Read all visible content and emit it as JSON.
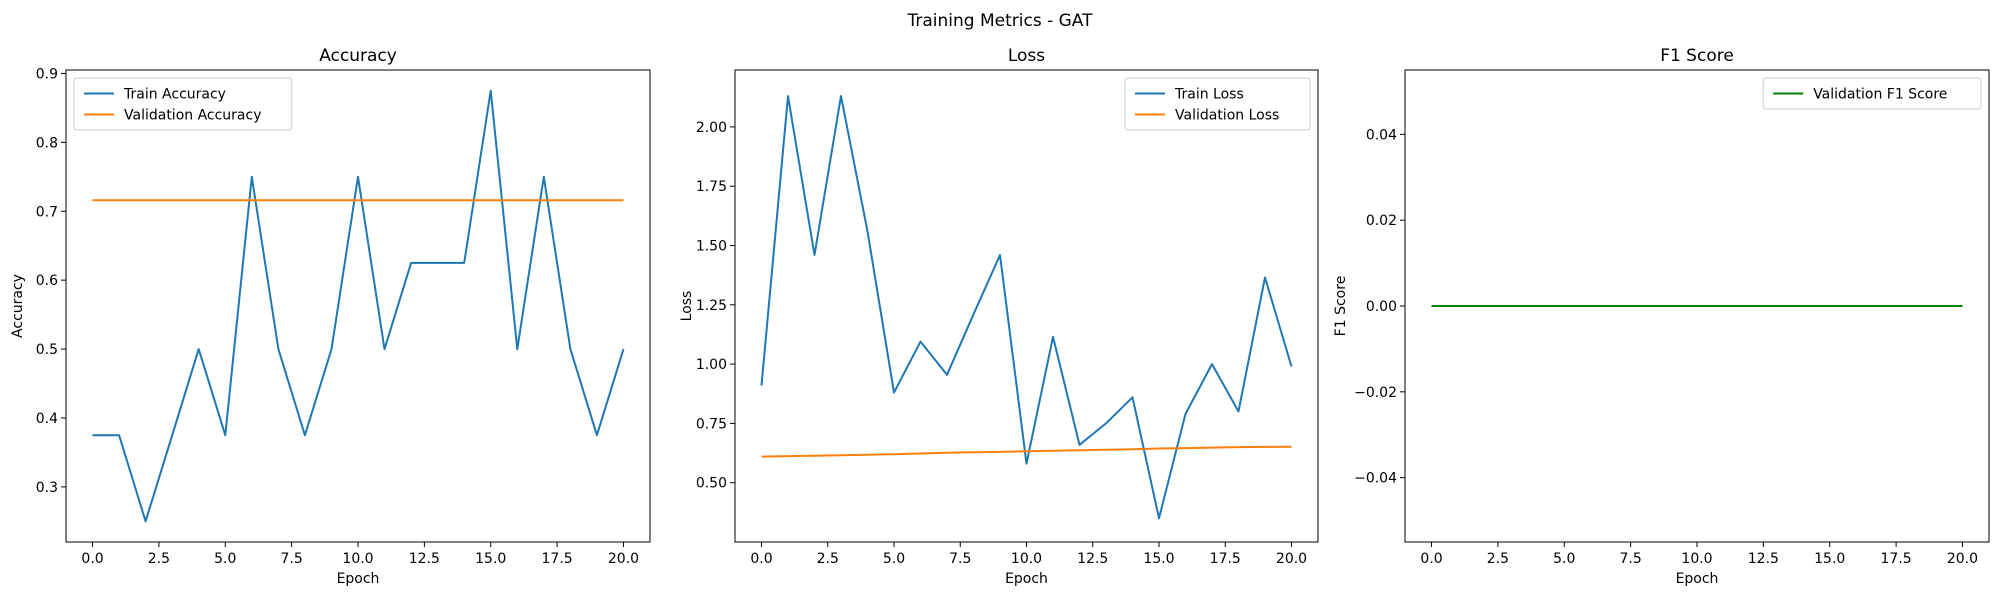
{
  "figure": {
    "title": "Training Metrics - GAT"
  },
  "colors": {
    "blue": "#1f77b4",
    "orange": "#ff7f0e",
    "green": "#008000",
    "axis": "#000000",
    "legend_border": "#cccccc"
  },
  "chart_data": [
    {
      "type": "line",
      "title": "Accuracy",
      "xlabel": "Epoch",
      "ylabel": "Accuracy",
      "xlim": [
        -1,
        21
      ],
      "ylim": [
        0.22,
        0.905
      ],
      "xticks": [
        0.0,
        2.5,
        5.0,
        7.5,
        10.0,
        12.5,
        15.0,
        17.5,
        20.0
      ],
      "xtick_labels": [
        "0.0",
        "2.5",
        "5.0",
        "7.5",
        "10.0",
        "12.5",
        "15.0",
        "17.5",
        "20.0"
      ],
      "yticks": [
        0.3,
        0.4,
        0.5,
        0.6,
        0.7,
        0.8,
        0.9
      ],
      "ytick_labels": [
        "0.3",
        "0.4",
        "0.5",
        "0.6",
        "0.7",
        "0.8",
        "0.9"
      ],
      "legend": "upper left",
      "grid": false,
      "x": [
        0,
        1,
        2,
        3,
        4,
        5,
        6,
        7,
        8,
        9,
        10,
        11,
        12,
        13,
        14,
        15,
        16,
        17,
        18,
        19,
        20
      ],
      "series": [
        {
          "name": "Train Accuracy",
          "color": "#1f77b4",
          "values": [
            0.375,
            0.375,
            0.25,
            0.375,
            0.5,
            0.375,
            0.75,
            0.5,
            0.375,
            0.5,
            0.75,
            0.5,
            0.625,
            0.625,
            0.625,
            0.875,
            0.5,
            0.75,
            0.5,
            0.375,
            0.5
          ]
        },
        {
          "name": "Validation Accuracy",
          "color": "#ff7f0e",
          "values": [
            0.716,
            0.716,
            0.716,
            0.716,
            0.716,
            0.716,
            0.716,
            0.716,
            0.716,
            0.716,
            0.716,
            0.716,
            0.716,
            0.716,
            0.716,
            0.716,
            0.716,
            0.716,
            0.716,
            0.716,
            0.716
          ]
        }
      ]
    },
    {
      "type": "line",
      "title": "Loss",
      "xlabel": "Epoch",
      "ylabel": "Loss",
      "xlim": [
        -1,
        21
      ],
      "ylim": [
        0.25,
        2.24
      ],
      "xticks": [
        0.0,
        2.5,
        5.0,
        7.5,
        10.0,
        12.5,
        15.0,
        17.5,
        20.0
      ],
      "xtick_labels": [
        "0.0",
        "2.5",
        "5.0",
        "7.5",
        "10.0",
        "12.5",
        "15.0",
        "17.5",
        "20.0"
      ],
      "yticks": [
        0.5,
        0.75,
        1.0,
        1.25,
        1.5,
        1.75,
        2.0
      ],
      "ytick_labels": [
        "0.50",
        "0.75",
        "1.00",
        "1.25",
        "1.50",
        "1.75",
        "2.00"
      ],
      "legend": "upper right",
      "grid": false,
      "x": [
        0,
        1,
        2,
        3,
        4,
        5,
        6,
        7,
        8,
        9,
        10,
        11,
        12,
        13,
        14,
        15,
        16,
        17,
        18,
        19,
        20
      ],
      "series": [
        {
          "name": "Train Loss",
          "color": "#1f77b4",
          "values": [
            0.91,
            2.13,
            1.46,
            2.13,
            1.56,
            0.88,
            1.095,
            0.955,
            1.21,
            1.46,
            0.58,
            1.115,
            0.66,
            0.75,
            0.86,
            0.35,
            0.79,
            1.0,
            0.8,
            1.365,
            0.99
          ]
        },
        {
          "name": "Validation Loss",
          "color": "#ff7f0e",
          "values": [
            0.61,
            0.612,
            0.614,
            0.616,
            0.618,
            0.62,
            0.623,
            0.626,
            0.628,
            0.63,
            0.633,
            0.635,
            0.637,
            0.639,
            0.641,
            0.644,
            0.646,
            0.648,
            0.65,
            0.651,
            0.652
          ]
        }
      ]
    },
    {
      "type": "line",
      "title": "F1 Score",
      "xlabel": "Epoch",
      "ylabel": "F1 Score",
      "xlim": [
        -1,
        21
      ],
      "ylim": [
        -0.055,
        0.055
      ],
      "xticks": [
        0.0,
        2.5,
        5.0,
        7.5,
        10.0,
        12.5,
        15.0,
        17.5,
        20.0
      ],
      "xtick_labels": [
        "0.0",
        "2.5",
        "5.0",
        "7.5",
        "10.0",
        "12.5",
        "15.0",
        "17.5",
        "20.0"
      ],
      "yticks": [
        -0.04,
        -0.02,
        0.0,
        0.02,
        0.04
      ],
      "ytick_labels": [
        "−0.04",
        "−0.02",
        "0.00",
        "0.02",
        "0.04"
      ],
      "legend": "upper right",
      "grid": false,
      "x": [
        0,
        1,
        2,
        3,
        4,
        5,
        6,
        7,
        8,
        9,
        10,
        11,
        12,
        13,
        14,
        15,
        16,
        17,
        18,
        19,
        20
      ],
      "series": [
        {
          "name": "Validation F1 Score",
          "color": "#008000",
          "values": [
            0,
            0,
            0,
            0,
            0,
            0,
            0,
            0,
            0,
            0,
            0,
            0,
            0,
            0,
            0,
            0,
            0,
            0,
            0,
            0,
            0
          ]
        }
      ]
    }
  ]
}
